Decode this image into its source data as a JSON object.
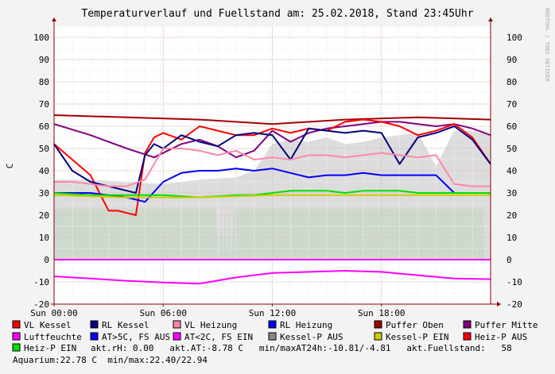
{
  "chart_data": {
    "type": "line",
    "title": "Temperaturverlauf und Fuellstand am: 25.02.2018, Stand 23:45Uhr",
    "watermark": "RRDTOOL / TOBI OETIKER",
    "ylabel": "C",
    "ylim": [
      -20,
      105
    ],
    "y_ticks": [
      100,
      90,
      80,
      70,
      60,
      50,
      40,
      30,
      20,
      10,
      0,
      -10,
      -20
    ],
    "xlim": [
      0,
      24
    ],
    "x_ticks": [
      {
        "x": 0,
        "label": "Sun 00:00"
      },
      {
        "x": 6,
        "label": "Sun 06:00"
      },
      {
        "x": 12,
        "label": "Sun 12:00"
      },
      {
        "x": 18,
        "label": "Sun 18:00"
      }
    ],
    "areas": [
      {
        "name": "Luftfeuchte",
        "color": "#99e699",
        "x": [
          0,
          8.9,
          9.1,
          9.2,
          9.3,
          9.4,
          9.5,
          9.6,
          9.7,
          9.9,
          10.1,
          23.6,
          23.65
        ],
        "y": [
          23,
          23,
          0,
          23,
          0,
          23,
          0,
          23,
          0,
          23,
          23,
          23,
          0
        ]
      },
      {
        "name": "Kessel-P AUS (grey)",
        "color": "#d6d6d6",
        "x": [
          0,
          2,
          4,
          6,
          8,
          10,
          11,
          12,
          13,
          14,
          15,
          16,
          17,
          18,
          19,
          20,
          21,
          22,
          23,
          24
        ],
        "y": [
          36,
          36,
          35,
          34,
          36,
          37,
          40,
          52,
          54,
          53,
          55,
          52,
          53,
          55,
          56,
          57,
          42,
          58,
          58,
          56
        ]
      }
    ],
    "series": [
      {
        "name": "Puffer Oben",
        "color": "#a00000",
        "x": [
          0,
          4,
          8,
          12,
          16,
          20,
          24
        ],
        "y": [
          65,
          64,
          63,
          61,
          63,
          64,
          63
        ]
      },
      {
        "name": "Puffer Mitte",
        "color": "#800080",
        "x": [
          0,
          2,
          4,
          5.5,
          7,
          8,
          9,
          10,
          11,
          12,
          13,
          14,
          15,
          16,
          17,
          18,
          19,
          20,
          21,
          22,
          23,
          24
        ],
        "y": [
          61,
          56,
          50,
          46,
          52,
          54,
          51,
          46,
          49,
          58,
          53,
          57,
          59,
          60,
          61,
          62,
          62,
          61,
          60,
          61,
          59,
          56
        ]
      },
      {
        "name": "VL Kessel",
        "color": "#ff0000",
        "x": [
          0,
          1,
          2,
          3,
          3.5,
          4,
          4.5,
          5,
          5.5,
          6,
          7,
          8,
          9,
          10,
          11,
          12,
          13,
          14,
          15,
          16,
          17,
          18,
          19,
          20,
          21,
          22,
          23,
          24
        ],
        "y": [
          52,
          45,
          38,
          22,
          22,
          21,
          20,
          48,
          55,
          57,
          54,
          60,
          58,
          56,
          56,
          59,
          57,
          59,
          58,
          62,
          63,
          62,
          60,
          56,
          58,
          61,
          55,
          43
        ]
      },
      {
        "name": "RL Kessel",
        "color": "#000080",
        "x": [
          0,
          1,
          2,
          3,
          4,
          4.5,
          5,
          5.5,
          6,
          7,
          8,
          9,
          10,
          11,
          12,
          13,
          14,
          15,
          16,
          17,
          18,
          19,
          20,
          21,
          22,
          23,
          24
        ],
        "y": [
          52,
          40,
          35,
          33,
          31,
          30,
          47,
          52,
          50,
          56,
          53,
          51,
          56,
          57,
          56,
          45,
          59,
          58,
          57,
          58,
          57,
          43,
          55,
          57,
          60,
          54,
          43
        ]
      },
      {
        "name": "VL Heizung",
        "color": "#ff88aa",
        "x": [
          0,
          1,
          2,
          3,
          4,
          5,
          6,
          7,
          8,
          9,
          10,
          11,
          12,
          13,
          14,
          15,
          16,
          17,
          18,
          19,
          20,
          21,
          22,
          23,
          24
        ],
        "y": [
          35,
          35,
          34,
          33,
          33,
          36,
          50,
          50,
          49,
          47,
          49,
          45,
          46,
          45,
          47,
          47,
          46,
          47,
          48,
          47,
          46,
          47,
          34,
          33,
          33
        ]
      },
      {
        "name": "RL Heizung",
        "color": "#0000ff",
        "x": [
          0,
          1,
          2,
          3,
          4,
          5,
          6,
          7,
          8,
          9,
          10,
          11,
          12,
          13,
          14,
          15,
          16,
          17,
          18,
          19,
          20,
          21,
          22,
          23,
          24
        ],
        "y": [
          30,
          30,
          30,
          29,
          28,
          26,
          35,
          39,
          40,
          40,
          41,
          40,
          41,
          39,
          37,
          38,
          38,
          39,
          38,
          38,
          38,
          38,
          30,
          30,
          30
        ]
      },
      {
        "name": "AT<2C, FS EIN",
        "color": "#ff00ff",
        "x": [
          0,
          2,
          4,
          6,
          8,
          10,
          12,
          14,
          16,
          18,
          20,
          22,
          24
        ],
        "y": [
          -7.5,
          -8.5,
          -9.5,
          -10.3,
          -10.8,
          -8,
          -6,
          -5.5,
          -5,
          -5.5,
          -7,
          -8.5,
          -8.8
        ]
      },
      {
        "name": "Heiz-P EIN",
        "color": "#00dd00",
        "x": [
          0,
          2,
          4,
          6,
          8,
          10,
          11,
          12,
          13,
          14,
          15,
          16,
          17,
          18,
          19,
          20,
          21,
          22,
          23,
          24
        ],
        "y": [
          30,
          29,
          29,
          29,
          28,
          29,
          29,
          30,
          31,
          31,
          31,
          30,
          31,
          31,
          31,
          30,
          30,
          30,
          30,
          30
        ]
      },
      {
        "name": "Kessel-P EIN",
        "color": "#cccc00",
        "x": [
          0,
          4,
          8,
          12,
          16,
          20,
          24
        ],
        "y": [
          29,
          28,
          28,
          29,
          29,
          29,
          29
        ]
      }
    ],
    "grid": true
  },
  "legend": [
    {
      "label": "VL Kessel",
      "color": "#ff0000"
    },
    {
      "label": "RL Kessel",
      "color": "#000080"
    },
    {
      "label": "VL Heizung",
      "color": "#ff88aa"
    },
    {
      "label": "RL Heizung",
      "color": "#0000ff"
    },
    {
      "label": "Puffer Oben",
      "color": "#a00000"
    },
    {
      "label": "Puffer Mitte",
      "color": "#800080"
    },
    {
      "label": "Luftfeuchte",
      "color": "#ff00ff"
    },
    {
      "label": "AT>5C, FS AUS",
      "color": "#0000ff"
    },
    {
      "label": "AT<2C, FS EIN",
      "color": "#ff00ff"
    },
    {
      "label": "Kessel-P AUS",
      "color": "#888888"
    },
    {
      "label": "Kessel-P EIN",
      "color": "#cccc00"
    },
    {
      "label": "Heiz-P AUS",
      "color": "#ff0000"
    },
    {
      "label": "Heiz-P EIN",
      "color": "#00dd00"
    }
  ],
  "status_line": "akt.rH: 0.00   akt.AT:-8.78 C   min/maxAT24h:-10.81/-4.81   akt.Fuellstand:   58",
  "footer_line": "Aquarium:22.78 C  min/max:22.40/22.94"
}
